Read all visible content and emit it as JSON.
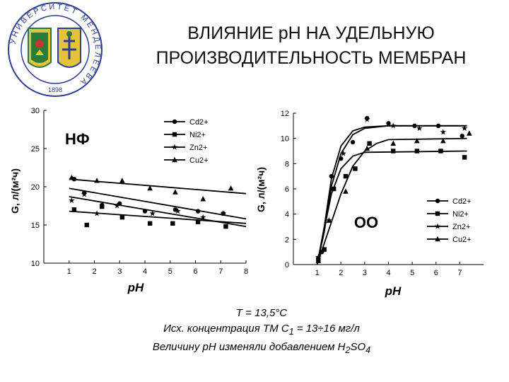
{
  "header": {
    "title_line1": "ВЛИЯНИЕ pH НА УДЕЛЬНУЮ",
    "title_line2": "ПРОИЗВОДИТЕЛЬНОСТЬ МЕМБРАН"
  },
  "logo": {
    "ring_text": "УНИВЕРСИТЕТ МЕНДЕЛЕЕВА",
    "year": "1898",
    "ring_color": "#2c3e8f",
    "shield_colors": [
      "#2a7b3a",
      "#e4c23a",
      "#c0392b"
    ]
  },
  "footer": {
    "line1": "T = 13,5°C",
    "line2_pre": "Исх. концентрация ТМ С",
    "line2_sub": "1",
    "line2_post": " = 13÷16 мг/л",
    "line3_pre": "Величину pH изменяли добавлением H",
    "line3_sub1": "2",
    "line3_mid": "SO",
    "line3_sub2": "4"
  },
  "chart_data": [
    {
      "type": "scatter",
      "annotation": "НФ",
      "xlabel": "pH",
      "ylabel": "G, л/(м²ч)",
      "xlim": [
        0,
        8
      ],
      "ylim": [
        10,
        30
      ],
      "xticks": [
        1,
        2,
        3,
        4,
        5,
        6,
        7,
        8
      ],
      "yticks": [
        10,
        15,
        20,
        25,
        30
      ],
      "legend_position": "top-right",
      "series": [
        {
          "name": "Cd2+",
          "marker": "circle",
          "x": [
            1.2,
            1.6,
            2.3,
            3.0,
            4.0,
            5.2,
            6.1,
            7.1
          ],
          "y": [
            21.0,
            19.2,
            17.6,
            17.8,
            16.8,
            17.0,
            16.8,
            16.5
          ],
          "fit": [
            [
              1.0,
              19.8
            ],
            [
              8.0,
              15.8
            ]
          ]
        },
        {
          "name": "Ni2+",
          "marker": "square",
          "x": [
            1.2,
            1.7,
            2.3,
            3.1,
            4.2,
            5.1,
            6.1,
            7.2
          ],
          "y": [
            17.0,
            15.0,
            17.4,
            16.0,
            15.2,
            15.2,
            15.4,
            14.8
          ],
          "fit": [
            [
              1.0,
              16.8
            ],
            [
              8.0,
              15.2
            ]
          ]
        },
        {
          "name": "Zn2+",
          "marker": "star",
          "x": [
            1.1,
            1.6,
            2.1,
            2.9,
            4.3,
            5.3,
            6.3,
            7.1
          ],
          "y": [
            18.2,
            19.0,
            16.5,
            17.5,
            16.5,
            16.8,
            16.0,
            16.5
          ],
          "fit": [
            [
              1.0,
              18.7
            ],
            [
              8.0,
              14.8
            ]
          ]
        },
        {
          "name": "Cu2+",
          "marker": "triangle",
          "x": [
            1.1,
            2.1,
            3.1,
            4.2,
            5.2,
            6.3,
            7.4
          ],
          "y": [
            21.2,
            20.8,
            20.8,
            19.8,
            19.3,
            18.4,
            19.8
          ],
          "fit": [
            [
              1.0,
              21.0
            ],
            [
              8.0,
              19.1
            ]
          ]
        }
      ]
    },
    {
      "type": "scatter",
      "annotation": "ОО",
      "xlabel": "pH",
      "ylabel": "G, л/(м²ч)",
      "xlim": [
        0,
        8
      ],
      "ylim": [
        0,
        12
      ],
      "xticks": [
        1,
        2,
        3,
        4,
        5,
        6,
        7
      ],
      "yticks": [
        0,
        2,
        4,
        6,
        8,
        10,
        12
      ],
      "legend_position": "bottom-right",
      "series": [
        {
          "name": "Cd2+",
          "marker": "circle",
          "x": [
            1.05,
            1.2,
            1.6,
            2.0,
            2.5,
            3.1,
            4.0,
            5.1,
            6.1,
            7.1
          ],
          "y": [
            0.5,
            1.0,
            7.0,
            8.4,
            9.7,
            11.6,
            11.2,
            11.0,
            11.0,
            10.2
          ],
          "fit": [
            [
              1.0,
              0.0
            ],
            [
              1.3,
              3.0
            ],
            [
              1.6,
              6.8
            ],
            [
              2.0,
              9.4
            ],
            [
              2.5,
              10.6
            ],
            [
              3.0,
              10.9
            ],
            [
              4.0,
              11.0
            ],
            [
              7.3,
              11.0
            ]
          ]
        },
        {
          "name": "Ni2+",
          "marker": "square",
          "x": [
            1.05,
            1.3,
            1.7,
            2.2,
            2.6,
            3.2,
            4.2,
            5.2,
            6.2,
            7.2
          ],
          "y": [
            0.4,
            1.2,
            6.0,
            7.0,
            7.6,
            9.6,
            9.0,
            9.0,
            9.0,
            8.5
          ],
          "fit": [
            [
              1.0,
              0.0
            ],
            [
              1.3,
              2.8
            ],
            [
              1.6,
              5.6
            ],
            [
              2.0,
              7.6
            ],
            [
              2.5,
              8.6
            ],
            [
              3.0,
              8.9
            ],
            [
              7.3,
              9.0
            ]
          ]
        },
        {
          "name": "Zn2+",
          "marker": "star",
          "x": [
            1.05,
            1.5,
            2.1,
            3.1,
            4.2,
            5.3,
            6.3,
            7.2
          ],
          "y": [
            0.6,
            3.5,
            8.8,
            11.5,
            11.0,
            10.8,
            10.5,
            10.8
          ],
          "fit": [
            [
              1.0,
              0.0
            ],
            [
              1.3,
              2.6
            ],
            [
              1.6,
              6.2
            ],
            [
              2.0,
              8.8
            ],
            [
              2.5,
              10.3
            ],
            [
              3.0,
              10.8
            ],
            [
              4.0,
              11.0
            ],
            [
              7.3,
              11.0
            ]
          ]
        },
        {
          "name": "Cu2+",
          "marker": "triangle",
          "x": [
            1.05,
            1.5,
            2.2,
            3.1,
            4.2,
            5.2,
            6.3,
            7.4
          ],
          "y": [
            0.3,
            3.5,
            5.8,
            9.2,
            9.6,
            9.8,
            9.8,
            10.4
          ],
          "fit": [
            [
              1.0,
              0.0
            ],
            [
              1.5,
              2.8
            ],
            [
              2.0,
              5.6
            ],
            [
              2.5,
              7.8
            ],
            [
              3.0,
              9.0
            ],
            [
              3.5,
              9.6
            ],
            [
              4.0,
              9.9
            ],
            [
              7.3,
              10.0
            ]
          ]
        }
      ]
    }
  ]
}
